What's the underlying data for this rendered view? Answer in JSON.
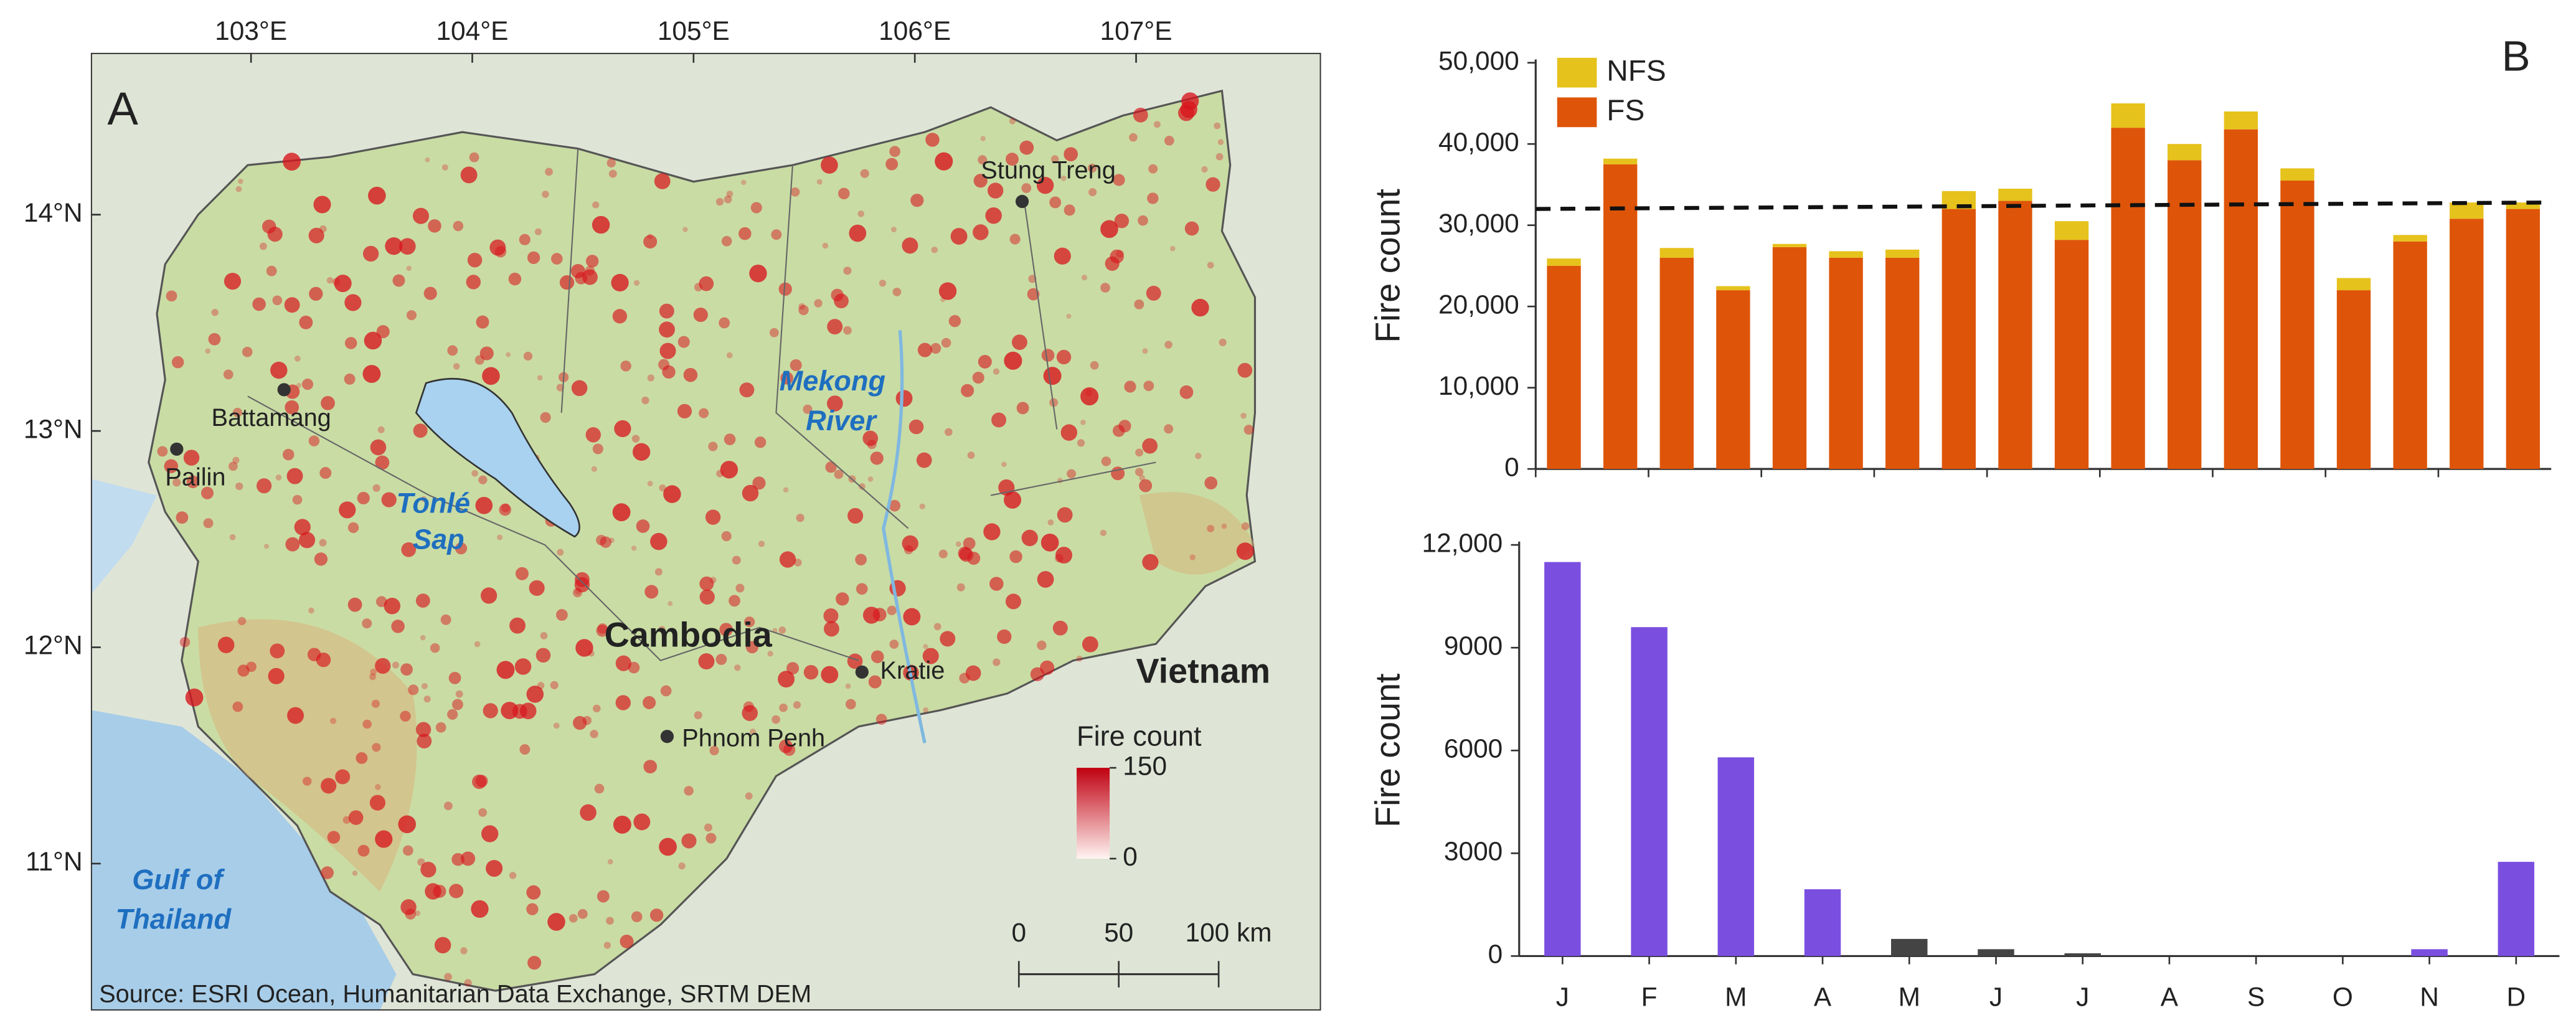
{
  "map": {
    "panel": "A",
    "lon_ticks": [
      {
        "value": 103,
        "label": "103°E"
      },
      {
        "value": 104,
        "label": "104°E"
      },
      {
        "value": 105,
        "label": "105°E"
      },
      {
        "value": 106,
        "label": "106°E"
      },
      {
        "value": 107,
        "label": "107°E"
      }
    ],
    "lat_ticks": [
      {
        "value": 14,
        "label": "14°N"
      },
      {
        "value": 13,
        "label": "13°N"
      },
      {
        "value": 12,
        "label": "12°N"
      },
      {
        "value": 11,
        "label": "11°N"
      }
    ],
    "places": [
      "Stung Treng",
      "Battamang",
      "Pailin",
      "Kratie",
      "Phnom Penh"
    ],
    "country": "Cambodia",
    "neighbor": "Vietnam",
    "lake": [
      "Tonlé",
      "Sap"
    ],
    "river": [
      "Mekong",
      "River"
    ],
    "sea": [
      "Gulf of",
      "Thailand"
    ],
    "legend_title": "Fire count",
    "legend_ticks": [
      150,
      0
    ],
    "scale_ticks": [
      0,
      50,
      {
        "value": 100,
        "label": "100 km"
      }
    ],
    "source": "Source: ESRI Ocean, Humanitarian Data Exchange, SRTM DEM"
  },
  "chart_data": [
    {
      "type": "stacked_bar",
      "panel": "B",
      "ylabel": "Fire count",
      "categories": [
        null,
        null,
        null,
        null,
        null,
        null,
        null,
        null,
        null,
        null,
        null,
        null,
        null,
        null,
        null,
        null,
        null,
        null
      ],
      "series": [
        {
          "name": "NFS",
          "color": "#e6c21c",
          "values": [
            900,
            700,
            1200,
            500,
            400,
            800,
            1000,
            2200,
            1500,
            2300,
            3000,
            2000,
            2200,
            1500,
            1500,
            800,
            2000,
            800
          ]
        },
        {
          "name": "FS",
          "color": "#de5509",
          "values": [
            25000,
            37500,
            26000,
            22000,
            27300,
            26000,
            26000,
            32000,
            33000,
            28200,
            42000,
            38000,
            41800,
            35500,
            22000,
            28000,
            30800,
            32000
          ]
        }
      ],
      "reference_line": [
        32000,
        32800
      ],
      "ylim": [
        0,
        50000
      ],
      "yticks": [
        0,
        {
          "value": 10000,
          "label": "10,000"
        },
        {
          "value": 20000,
          "label": "20,000"
        },
        {
          "value": 30000,
          "label": "30,000"
        },
        {
          "value": 40000,
          "label": "40,000"
        },
        {
          "value": 50000,
          "label": "50,000"
        }
      ],
      "legend": "upper left"
    },
    {
      "type": "bar",
      "ylabel": "Fire count",
      "categories": [
        "J",
        "F",
        "M",
        "A",
        "M",
        "J",
        "J",
        "A",
        "S",
        "O",
        "N",
        "D"
      ],
      "values": [
        11500,
        9600,
        5800,
        1950,
        500,
        200,
        80,
        0,
        0,
        0,
        200,
        2750
      ],
      "colors": [
        "#7a4fe0",
        "#7a4fe0",
        "#7a4fe0",
        "#7a4fe0",
        "#444444",
        "#444444",
        "#444444",
        "#7a4fe0",
        "#7a4fe0",
        "#7a4fe0",
        "#7a4fe0",
        "#7a4fe0"
      ],
      "ylim": [
        0,
        12000
      ],
      "yticks": [
        0,
        3000,
        6000,
        9000,
        {
          "value": 12000,
          "label": "12,000"
        }
      ]
    }
  ]
}
